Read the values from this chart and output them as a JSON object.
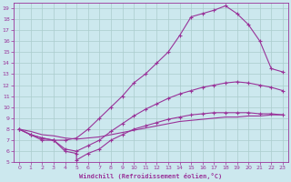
{
  "xlabel": "Windchill (Refroidissement éolien,°C)",
  "bg_color": "#cce8ee",
  "grid_color": "#aacccc",
  "line_color": "#993399",
  "xlim": [
    -0.5,
    23.5
  ],
  "ylim": [
    5,
    19.5
  ],
  "xticks": [
    0,
    1,
    2,
    3,
    4,
    5,
    6,
    7,
    8,
    9,
    10,
    11,
    12,
    13,
    14,
    15,
    16,
    17,
    18,
    19,
    20,
    21,
    22,
    23
  ],
  "yticks": [
    5,
    6,
    7,
    8,
    9,
    10,
    11,
    12,
    13,
    14,
    15,
    16,
    17,
    18,
    19
  ],
  "curve1_x": [
    0,
    1,
    2,
    3,
    4,
    5,
    6,
    7,
    8,
    9,
    10,
    11,
    12,
    13,
    14,
    15,
    16,
    17,
    18,
    19,
    20,
    21,
    22,
    23
  ],
  "curve1_y": [
    8.0,
    7.5,
    7.2,
    7.0,
    7.0,
    7.2,
    8.0,
    9.0,
    10.0,
    11.0,
    12.2,
    13.0,
    14.0,
    15.0,
    16.5,
    18.2,
    18.5,
    18.8,
    19.2,
    18.5,
    17.5,
    16.0,
    13.5,
    13.2
  ],
  "curve2_x": [
    0,
    1,
    2,
    3,
    4,
    5,
    6,
    7,
    8,
    9,
    10,
    11,
    12,
    13,
    14,
    15,
    16,
    17,
    18,
    19,
    20,
    21,
    22,
    23
  ],
  "curve2_y": [
    8.0,
    7.5,
    7.2,
    7.0,
    6.2,
    6.0,
    6.5,
    7.0,
    7.8,
    8.5,
    9.2,
    9.8,
    10.3,
    10.8,
    11.2,
    11.5,
    11.8,
    12.0,
    12.2,
    12.3,
    12.2,
    12.0,
    11.8,
    11.5
  ],
  "curve3_x": [
    0,
    1,
    2,
    3,
    4,
    5,
    6,
    7,
    8,
    9,
    10,
    11,
    12,
    13,
    14,
    15,
    16,
    17,
    18,
    19,
    20,
    21,
    22,
    23
  ],
  "curve3_y": [
    8.0,
    7.8,
    7.5,
    7.4,
    7.2,
    7.1,
    7.2,
    7.3,
    7.5,
    7.7,
    7.9,
    8.1,
    8.3,
    8.5,
    8.7,
    8.8,
    8.9,
    9.0,
    9.1,
    9.1,
    9.2,
    9.2,
    9.3,
    9.3
  ],
  "curve4_x": [
    0,
    1,
    2,
    3,
    4,
    5,
    5,
    6,
    7,
    8,
    9,
    10,
    11,
    12,
    13,
    14,
    15,
    16,
    17,
    18,
    19,
    20,
    21,
    22,
    23
  ],
  "curve4_y": [
    8.0,
    7.5,
    7.0,
    7.0,
    6.0,
    5.8,
    5.2,
    5.8,
    6.2,
    7.0,
    7.5,
    8.0,
    8.3,
    8.6,
    8.9,
    9.1,
    9.3,
    9.4,
    9.5,
    9.5,
    9.5,
    9.5,
    9.4,
    9.4,
    9.3
  ]
}
